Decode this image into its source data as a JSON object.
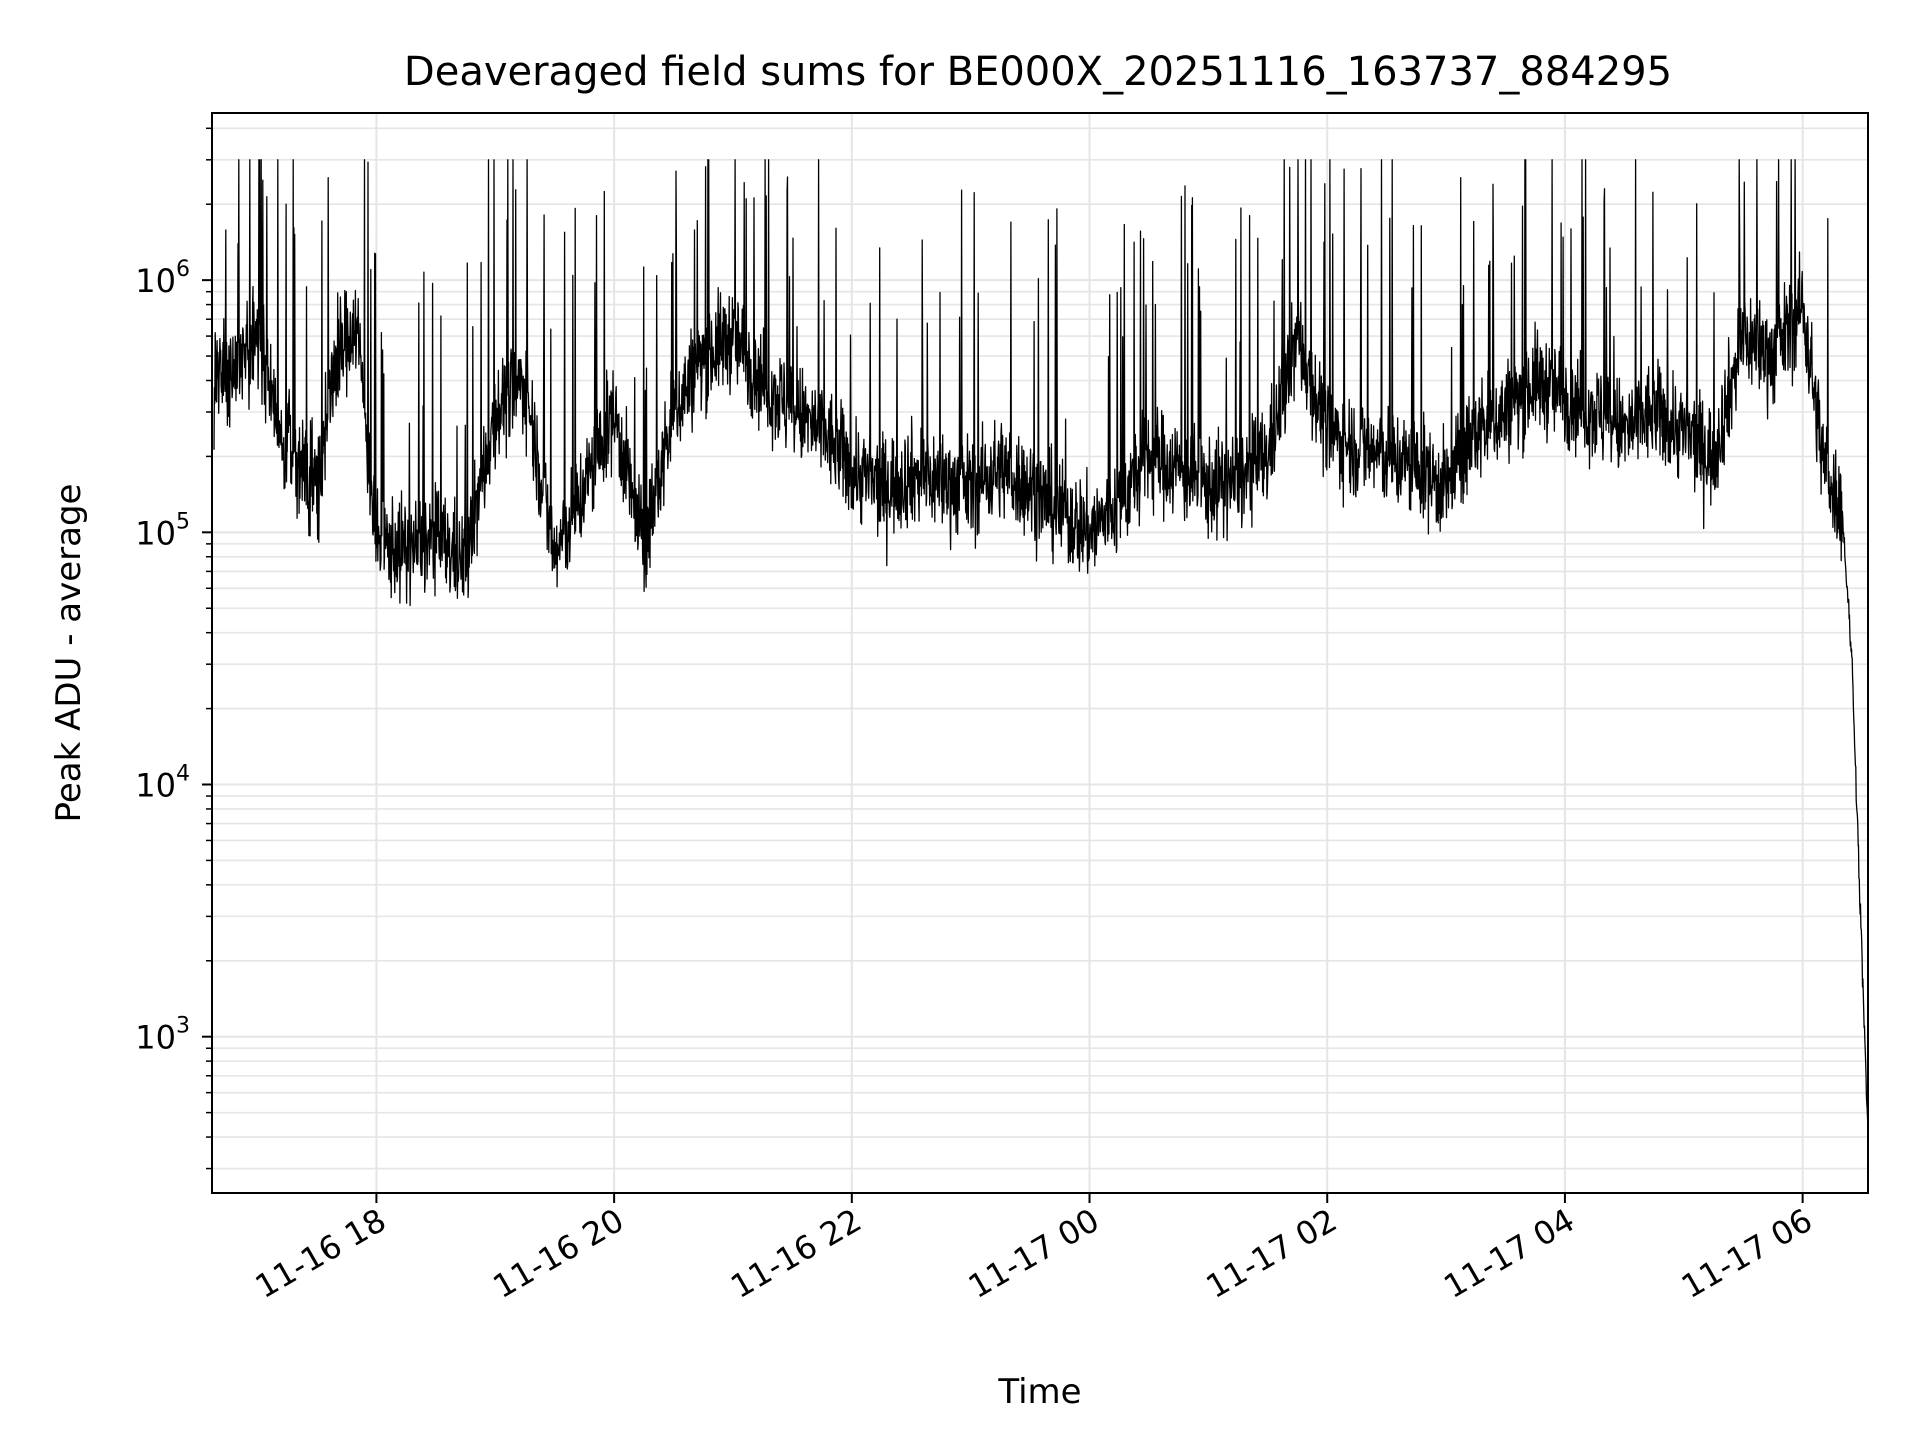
{
  "chart_data": {
    "type": "line",
    "title": "Deaveraged field sums for BE000X_20251116_163737_884295",
    "xlabel": "Time",
    "ylabel": "Peak ADU - average",
    "yscale": "log",
    "ylim": [
      240,
      4600000
    ],
    "xlim": [
      "2025-11-16 16:37",
      "2025-11-17 06:33"
    ],
    "grid": true,
    "line_color": "#000000",
    "grid_color": "#e5e5e5",
    "x_ticks": [
      {
        "label": "11-16 18",
        "value": "2025-11-16 18:00"
      },
      {
        "label": "11-16 20",
        "value": "2025-11-16 20:00"
      },
      {
        "label": "11-16 22",
        "value": "2025-11-16 22:00"
      },
      {
        "label": "11-17 00",
        "value": "2025-11-17 00:00"
      },
      {
        "label": "11-17 02",
        "value": "2025-11-17 02:00"
      },
      {
        "label": "11-17 04",
        "value": "2025-11-17 04:00"
      },
      {
        "label": "11-17 06",
        "value": "2025-11-17 06:00"
      }
    ],
    "y_ticks": [
      {
        "base": "10",
        "exp": "3",
        "value": 1000
      },
      {
        "base": "10",
        "exp": "4",
        "value": 10000
      },
      {
        "base": "10",
        "exp": "5",
        "value": 100000
      },
      {
        "base": "10",
        "exp": "6",
        "value": 1000000
      }
    ],
    "series": [
      {
        "x": [
          "2025-11-16 16:38",
          "2025-11-16 16:50",
          "2025-11-16 17:00",
          "2025-11-16 17:10",
          "2025-11-16 17:20",
          "2025-11-16 17:30",
          "2025-11-16 17:40",
          "2025-11-16 17:50",
          "2025-11-16 18:00",
          "2025-11-16 18:15",
          "2025-11-16 18:30",
          "2025-11-16 18:45",
          "2025-11-16 19:00",
          "2025-11-16 19:15",
          "2025-11-16 19:30",
          "2025-11-16 19:45",
          "2025-11-16 20:00",
          "2025-11-16 20:15",
          "2025-11-16 20:30",
          "2025-11-16 20:45",
          "2025-11-16 21:00",
          "2025-11-16 21:15",
          "2025-11-16 21:30",
          "2025-11-16 21:45",
          "2025-11-16 22:00",
          "2025-11-16 22:15",
          "2025-11-16 22:30",
          "2025-11-16 22:45",
          "2025-11-16 23:00",
          "2025-11-16 23:15",
          "2025-11-16 23:30",
          "2025-11-16 23:45",
          "2025-11-17 00:00",
          "2025-11-17 00:15",
          "2025-11-17 00:30",
          "2025-11-17 00:45",
          "2025-11-17 01:00",
          "2025-11-17 01:15",
          "2025-11-17 01:30",
          "2025-11-17 01:45",
          "2025-11-17 02:00",
          "2025-11-17 02:15",
          "2025-11-17 02:30",
          "2025-11-17 02:45",
          "2025-11-17 03:00",
          "2025-11-17 03:15",
          "2025-11-17 03:30",
          "2025-11-17 03:45",
          "2025-11-17 04:00",
          "2025-11-17 04:15",
          "2025-11-17 04:30",
          "2025-11-17 04:45",
          "2025-11-17 05:00",
          "2025-11-17 05:15",
          "2025-11-17 05:30",
          "2025-11-17 05:45",
          "2025-11-17 06:00",
          "2025-11-17 06:10",
          "2025-11-17 06:20",
          "2025-11-17 06:25",
          "2025-11-17 06:30",
          "2025-11-17 06:33"
        ],
        "values": [
          400000,
          450000,
          600000,
          250000,
          200000,
          150000,
          500000,
          700000,
          90000,
          85000,
          95000,
          75000,
          300000,
          400000,
          80000,
          150000,
          300000,
          85000,
          300000,
          500000,
          600000,
          400000,
          300000,
          250000,
          180000,
          150000,
          170000,
          160000,
          150000,
          180000,
          150000,
          120000,
          100000,
          130000,
          200000,
          180000,
          150000,
          160000,
          200000,
          600000,
          250000,
          220000,
          200000,
          180000,
          150000,
          250000,
          300000,
          400000,
          350000,
          300000,
          250000,
          300000,
          250000,
          200000,
          600000,
          500000,
          800000,
          200000,
          120000,
          30000,
          2000,
          400
        ]
      }
    ]
  }
}
